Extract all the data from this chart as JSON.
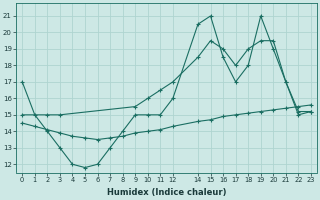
{
  "xlabel": "Humidex (Indice chaleur)",
  "background_color": "#cde8e5",
  "grid_color": "#afd4d0",
  "line_color": "#1a6e62",
  "x_ticks": [
    0,
    1,
    2,
    3,
    4,
    5,
    6,
    7,
    8,
    9,
    10,
    11,
    12,
    14,
    15,
    16,
    17,
    18,
    19,
    20,
    21,
    22,
    23
  ],
  "y_ticks": [
    12,
    13,
    14,
    15,
    16,
    17,
    18,
    19,
    20,
    21
  ],
  "xlim": [
    -0.5,
    23.5
  ],
  "ylim": [
    11.5,
    21.8
  ],
  "series": [
    {
      "x": [
        0,
        1,
        2,
        3,
        4,
        5,
        6,
        7,
        8,
        9,
        10,
        11,
        12,
        14,
        15,
        16,
        17,
        18,
        19,
        20,
        21,
        22,
        23
      ],
      "y": [
        17,
        15,
        14,
        13,
        12,
        11.8,
        12,
        13,
        14,
        15,
        15,
        15,
        16,
        20.5,
        21,
        18.5,
        17,
        18,
        21,
        19,
        17,
        15,
        15.2
      ]
    },
    {
      "x": [
        0,
        2,
        3,
        9,
        10,
        11,
        12,
        14,
        15,
        16,
        17,
        18,
        19,
        20,
        21,
        22,
        23
      ],
      "y": [
        15,
        15,
        15,
        15.5,
        16,
        16.5,
        17,
        18.5,
        19.5,
        19,
        18,
        19,
        19.5,
        19.5,
        17,
        15.2,
        15.2
      ]
    },
    {
      "x": [
        0,
        1,
        2,
        3,
        4,
        5,
        6,
        7,
        8,
        9,
        10,
        11,
        12,
        14,
        15,
        16,
        17,
        18,
        19,
        20,
        21,
        22,
        23
      ],
      "y": [
        14.5,
        14.3,
        14.1,
        13.9,
        13.7,
        13.6,
        13.5,
        13.6,
        13.7,
        13.9,
        14.0,
        14.1,
        14.3,
        14.6,
        14.7,
        14.9,
        15.0,
        15.1,
        15.2,
        15.3,
        15.4,
        15.5,
        15.6
      ]
    }
  ]
}
